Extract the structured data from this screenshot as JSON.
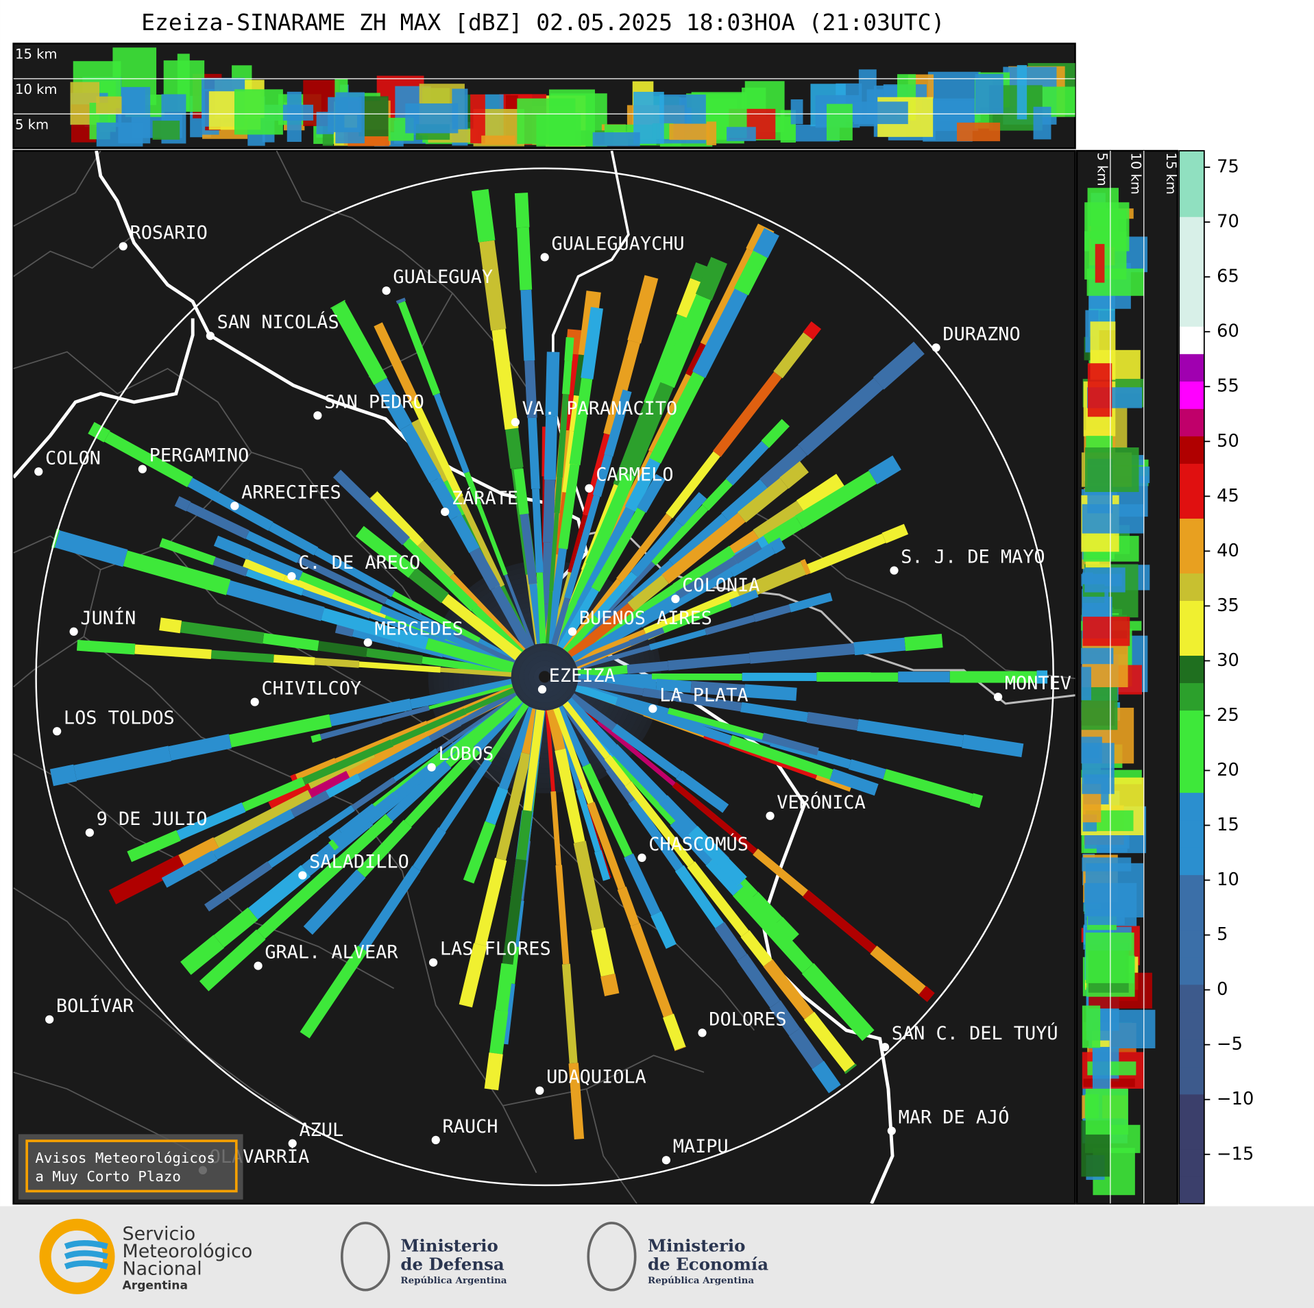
{
  "title": "Ezeiza-SINARAME ZH MAX [dBZ] 02.05.2025 18:03HOA (21:03UTC)",
  "top_panel": {
    "altitudes": [
      "15 km",
      "10 km",
      "5 km"
    ]
  },
  "side_panel": {
    "altitudes": [
      "5 km",
      "10 km",
      "15 km"
    ]
  },
  "cities": [
    "ROSARIO",
    "GUALEGUAYCHU",
    "GUALEGUAY",
    "SAN NICOLÁS",
    "DURAZNO",
    "SAN PEDRO",
    "VA. PARANACITO",
    "COLON",
    "PERGAMINO",
    "CARMELO",
    "ARRECIFES",
    "ZÁRATE",
    "S. J. DE MAYO",
    "C. DE ARECO",
    "COLONIA",
    "BUENOS AIRES",
    "JUNÍN",
    "MERCEDES",
    "EZEIZA",
    "MONTEV",
    "LA PLATA",
    "CHIVILCOY",
    "LOS TOLDOS",
    "LOBOS",
    "VERÓNICA",
    "9 DE JULIO",
    "CHASCOMÚS",
    "SALADILLO",
    "GRAL. ALVEAR",
    "LAS FLORES",
    "BOLÍVAR",
    "DOLORES",
    "SAN C. DEL TUYÚ",
    "UDAQUIOLA",
    "MAR DE AJÓ",
    "AZUL",
    "RAUCH",
    "MAIPU",
    "OLAVARRÍA"
  ],
  "colorbar": {
    "lim": [
      -19.5,
      76.5
    ],
    "ticks": [
      75,
      70,
      65,
      60,
      55,
      50,
      45,
      40,
      35,
      30,
      25,
      20,
      15,
      10,
      5,
      0,
      {
        "value": -5,
        "label": "−5"
      },
      {
        "value": -10,
        "label": "−10"
      },
      {
        "value": -15,
        "label": "−15"
      }
    ]
  },
  "warning_box": [
    "Avisos Meteorológicos",
    "a Muy Corto Plazo"
  ],
  "logos": {
    "smn": [
      "Servicio",
      "Meteorológico",
      "Nacional",
      "Argentina"
    ],
    "defensa": [
      "Ministerio",
      "de Defensa",
      "República Argentina"
    ],
    "economia": [
      "Ministerio",
      "de Economía",
      "República Argentina"
    ]
  }
}
